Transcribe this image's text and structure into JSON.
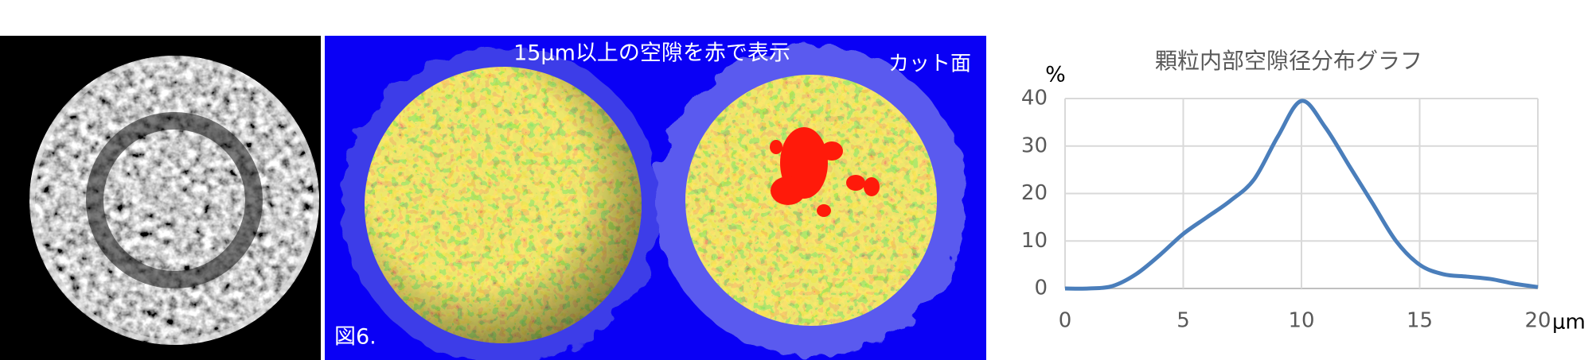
{
  "panels": {
    "caption": "15μm以上の空隙を赤で表示",
    "cut_label": "カット面",
    "figure_label": "図6."
  },
  "chart_data": {
    "type": "line",
    "title": "顆粒内部空隙径分布グラフ",
    "xlabel": "μm",
    "ylabel": "%",
    "x": [
      0,
      1,
      2,
      3,
      4,
      5,
      6,
      7,
      8,
      9,
      10,
      11,
      12,
      13,
      14,
      15,
      16,
      17,
      18,
      19,
      20
    ],
    "values": [
      0,
      0,
      0.5,
      3,
      7,
      11.5,
      15,
      18.5,
      23,
      32,
      39.5,
      34,
      26,
      18,
      10,
      5,
      3,
      2.5,
      2,
      1,
      0.3
    ],
    "color": "#4a7ebb",
    "xlim": [
      0,
      20
    ],
    "xticks": [
      0,
      5,
      10,
      15,
      20
    ],
    "ylim": [
      0,
      40
    ],
    "yticks": [
      0,
      10,
      20,
      30,
      40
    ],
    "grid": true
  }
}
